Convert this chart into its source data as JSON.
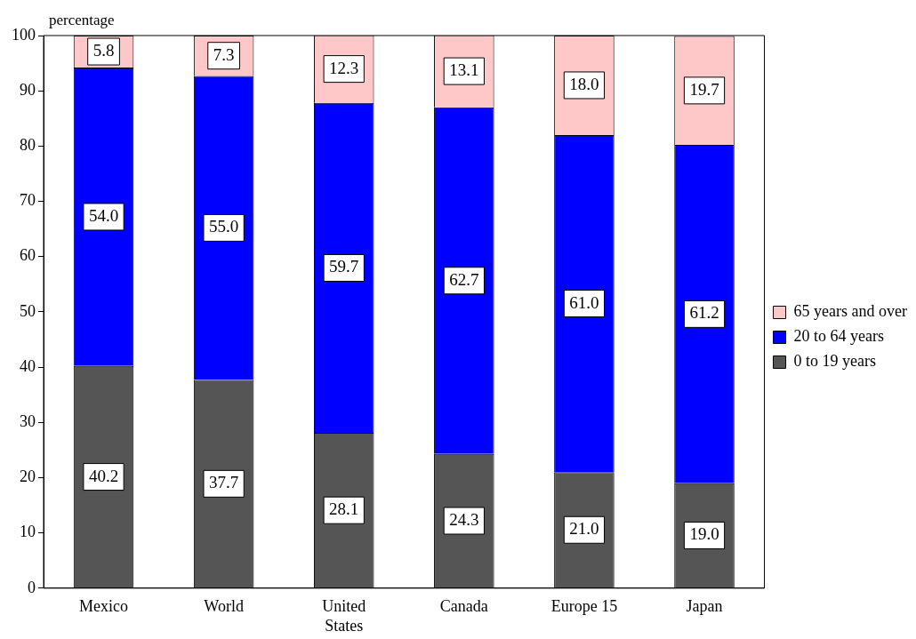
{
  "chart_data": {
    "type": "bar",
    "stacked": true,
    "ylabel": "percentage",
    "categories": [
      "Mexico",
      "World",
      "United States",
      "Canada",
      "Europe 15",
      "Japan"
    ],
    "series": [
      {
        "name": "0 to 19 years",
        "color": "#555555",
        "values": [
          40.2,
          37.7,
          28.1,
          24.3,
          21.0,
          19.0
        ],
        "value_labels": [
          "40.2",
          "37.7",
          "28.1",
          "24.3",
          "21.0",
          "19.0"
        ]
      },
      {
        "name": "20 to 64 years",
        "color": "#0000ff",
        "values": [
          54.0,
          55.0,
          59.7,
          62.7,
          61.0,
          61.2
        ],
        "value_labels": [
          "54.0",
          "55.0",
          "59.7",
          "62.7",
          "61.0",
          "61.2"
        ]
      },
      {
        "name": "65 years and over",
        "color": "#ffc8c8",
        "values": [
          5.8,
          7.3,
          12.3,
          13.1,
          18.0,
          19.7
        ],
        "value_labels": [
          "5.8",
          "7.3",
          "12.3",
          "13.1",
          "18.0",
          "19.7"
        ]
      }
    ],
    "ylim": [
      0,
      100
    ],
    "yticks": [
      0,
      10,
      20,
      30,
      40,
      50,
      60,
      70,
      80,
      90,
      100
    ],
    "legend": "right",
    "grid": false
  }
}
